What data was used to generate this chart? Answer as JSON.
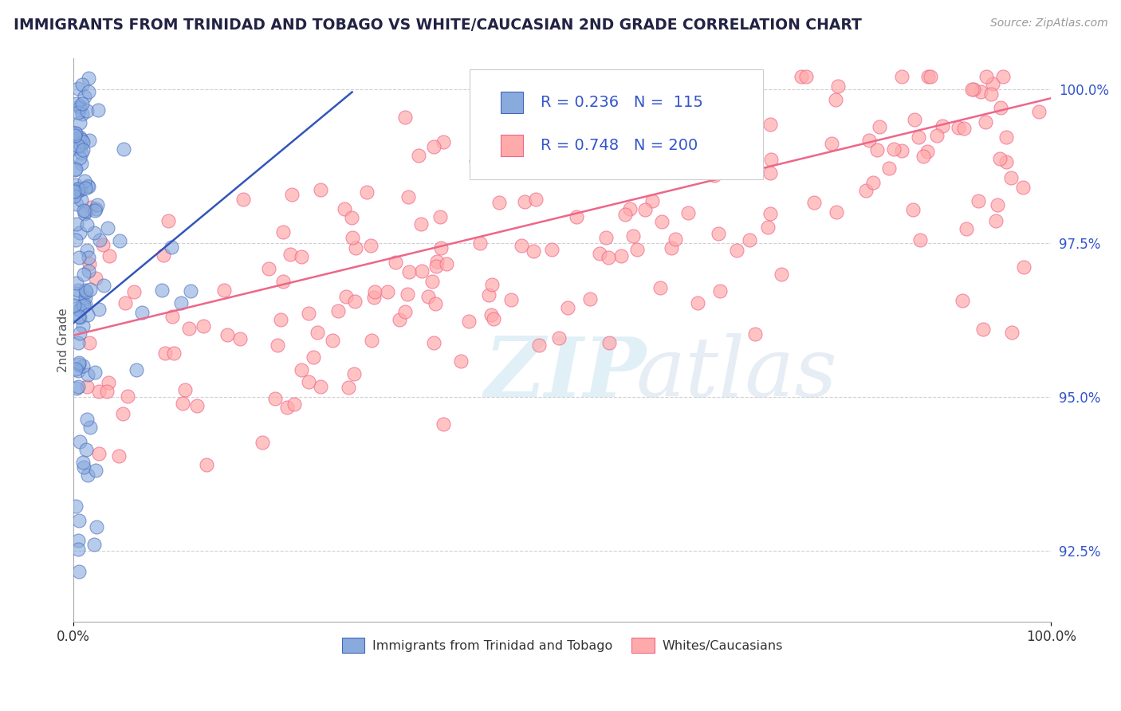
{
  "title": "IMMIGRANTS FROM TRINIDAD AND TOBAGO VS WHITE/CAUCASIAN 2ND GRADE CORRELATION CHART",
  "source_text": "Source: ZipAtlas.com",
  "ylabel": "2nd Grade",
  "watermark_zip": "ZIP",
  "watermark_atlas": "atlas",
  "blue_R": 0.236,
  "blue_N": 115,
  "pink_R": 0.748,
  "pink_N": 200,
  "blue_label": "Immigrants from Trinidad and Tobago",
  "pink_label": "Whites/Caucasians",
  "xlim": [
    0.0,
    1.0
  ],
  "ylim": [
    0.9135,
    1.005
  ],
  "yticks": [
    0.925,
    0.95,
    0.975,
    1.0
  ],
  "ytick_labels": [
    "92.5%",
    "95.0%",
    "97.5%",
    "100.0%"
  ],
  "xtick_labels": [
    "0.0%",
    "100.0%"
  ],
  "blue_dot_color": "#88aadd",
  "blue_dot_edge": "#4466bb",
  "pink_dot_color": "#ffaaaa",
  "pink_dot_edge": "#ee6688",
  "blue_line_color": "#3355bb",
  "pink_line_color": "#ee6688",
  "background_color": "#ffffff",
  "grid_color": "#cccccc",
  "title_color": "#222244",
  "legend_color": "#3355cc",
  "ytick_color": "#3355cc"
}
